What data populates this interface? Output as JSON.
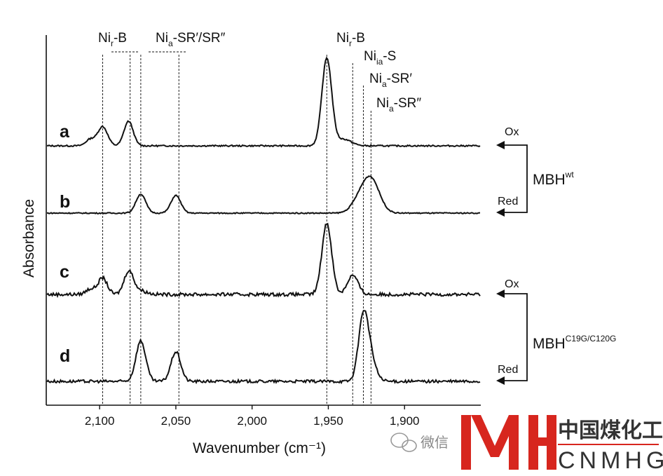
{
  "chart_data": {
    "type": "line",
    "xlabel": "Wavenumber (cm⁻¹)",
    "ylabel": "Absorbance",
    "xlim": [
      2135,
      1850
    ],
    "x_reversed": true,
    "xticks": [
      2100,
      2050,
      2000,
      1950,
      1900
    ],
    "xtick_labels": [
      "2,100",
      "2,050",
      "2,000",
      "1,950",
      "1,900"
    ],
    "series": [
      {
        "name": "a",
        "peaks": [
          {
            "x": 2098,
            "h": 0.35,
            "w": 3.2
          },
          {
            "x": 2081,
            "h": 0.45,
            "w": 3.0
          },
          {
            "x": 2106,
            "h": 0.12,
            "w": 3.0
          },
          {
            "x": 1951,
            "h": 1.6,
            "w": 3.2
          },
          {
            "x": 1940,
            "h": 0.12,
            "w": 5.0
          }
        ]
      },
      {
        "name": "b",
        "peaks": [
          {
            "x": 2073,
            "h": 0.45,
            "w": 3.2
          },
          {
            "x": 2050,
            "h": 0.42,
            "w": 3.2
          },
          {
            "x": 1922,
            "h": 0.8,
            "w": 5.5
          },
          {
            "x": 1930,
            "h": 0.25,
            "w": 5.0
          }
        ]
      },
      {
        "name": "c",
        "peaks": [
          {
            "x": 2098,
            "h": 0.3,
            "w": 3.0
          },
          {
            "x": 2081,
            "h": 0.4,
            "w": 3.0
          },
          {
            "x": 2106,
            "h": 0.1,
            "w": 3.0
          },
          {
            "x": 1951,
            "h": 1.3,
            "w": 3.2
          },
          {
            "x": 1934,
            "h": 0.35,
            "w": 3.5
          },
          {
            "x": 2075,
            "h": 0.08,
            "w": 5.0
          }
        ]
      },
      {
        "name": "d",
        "peaks": [
          {
            "x": 2073,
            "h": 0.85,
            "w": 3.2
          },
          {
            "x": 2050,
            "h": 0.62,
            "w": 3.2
          },
          {
            "x": 1927,
            "h": 1.35,
            "w": 3.2
          },
          {
            "x": 1922,
            "h": 0.4,
            "w": 3.5
          }
        ]
      }
    ],
    "dashed_markers": [
      2098,
      2080,
      2073,
      2048,
      1951,
      1934,
      1927,
      1922
    ],
    "annotations": [
      {
        "label": "Ni",
        "sub": "r",
        "suffix": "-B"
      },
      {
        "label": "Ni",
        "sub": "a",
        "suffix": "-SR′/SR″"
      },
      {
        "label": "Ni",
        "sub": "r",
        "suffix": "-B"
      },
      {
        "label": "Ni",
        "sub": "ia",
        "suffix": "-S"
      },
      {
        "label": "Ni",
        "sub": "a",
        "suffix": "-SR′"
      },
      {
        "label": "Ni",
        "sub": "a",
        "suffix": "-SR″"
      }
    ],
    "side_labels": {
      "group1": {
        "ox": "Ox",
        "red": "Red",
        "name": "MBH",
        "sup": "wt"
      },
      "group2": {
        "ox": "Ox",
        "red": "Red",
        "name": "MBH",
        "sup": "C19G/C120G"
      }
    }
  },
  "watermark": {
    "wechat": "微信",
    "cn": "中国煤化工",
    "en": "CNMHG",
    "color": "#d7261e"
  }
}
